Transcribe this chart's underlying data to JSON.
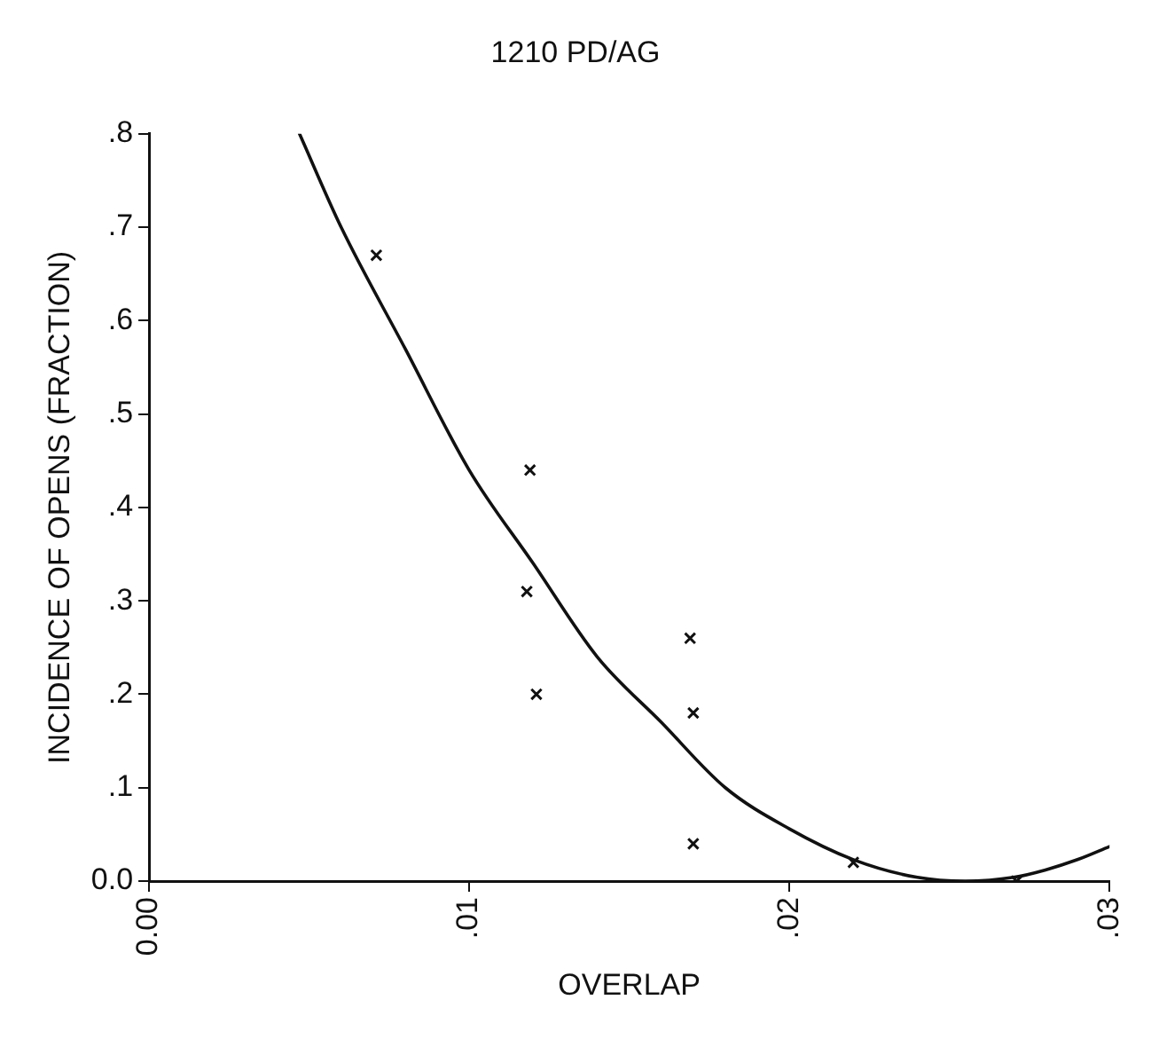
{
  "chart_data": {
    "type": "scatter",
    "title": "1210 PD/AG",
    "xlabel": "OVERLAP",
    "ylabel": "INCIDENCE OF OPENS (FRACTION)",
    "xlim": [
      0,
      0.03
    ],
    "xticks": [
      {
        "value": 0,
        "label": "0.00"
      },
      {
        "value": 0.01,
        "label": ".01"
      },
      {
        "value": 0.02,
        "label": ".02"
      },
      {
        "value": 0.03,
        "label": ".03"
      }
    ],
    "ylim": [
      0,
      0.8
    ],
    "yticks": [
      {
        "value": 0,
        "label": "0.0"
      },
      {
        "value": 0.1,
        "label": ".1"
      },
      {
        "value": 0.2,
        "label": ".2"
      },
      {
        "value": 0.3,
        "label": ".3"
      },
      {
        "value": 0.4,
        "label": ".4"
      },
      {
        "value": 0.5,
        "label": ".5"
      },
      {
        "value": 0.6,
        "label": ".6"
      },
      {
        "value": 0.7,
        "label": ".7"
      },
      {
        "value": 0.8,
        "label": ".8"
      }
    ],
    "grid": false,
    "legend": false,
    "series": [
      {
        "type": "scatter",
        "color": "#111111",
        "marker": "cross",
        "x": [
          0.0071,
          0.0119,
          0.0118,
          0.0121,
          0.0169,
          0.017,
          0.017,
          0.022,
          0.0271
        ],
        "values": [
          0.67,
          0.44,
          0.31,
          0.2,
          0.26,
          0.18,
          0.04,
          0.02,
          0.0
        ]
      },
      {
        "type": "line",
        "color": "#111111",
        "marker": "none",
        "x": [
          0.0047,
          0.006,
          0.008,
          0.01,
          0.012,
          0.014,
          0.016,
          0.018,
          0.02,
          0.022,
          0.024,
          0.0255,
          0.027,
          0.028,
          0.029,
          0.03
        ],
        "values": [
          0.8,
          0.7,
          0.57,
          0.44,
          0.34,
          0.24,
          0.17,
          0.1,
          0.056,
          0.023,
          0.004,
          0,
          0.004,
          0.012,
          0.023,
          0.037
        ]
      }
    ]
  }
}
